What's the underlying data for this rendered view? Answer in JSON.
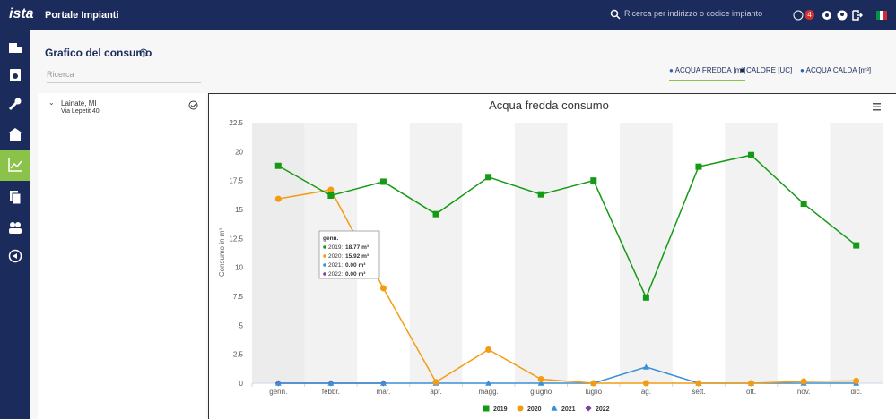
{
  "header": {
    "logo": "ista",
    "app_title": "Portale Impianti",
    "search_placeholder": "Ricerca per indirizzo o codice impianto",
    "notification_count": "4"
  },
  "page": {
    "title": "Grafico del consumo",
    "search_placeholder": "Ricerca",
    "tabs": [
      "ACQUA FREDDA [m³]",
      "CALORE [UC]",
      "ACQUA CALDA [m³]"
    ],
    "site": {
      "city": "Lainate, MI",
      "address": "Via Lepetit 40"
    }
  },
  "tooltip": {
    "title": "genn.",
    "rows": [
      {
        "series": "2019:",
        "value": "18.77 m³"
      },
      {
        "series": "2020:",
        "value": "15.92 m³"
      },
      {
        "series": "2021:",
        "value": "0.00 m³"
      },
      {
        "series": "2022:",
        "value": "0.00 m³"
      }
    ]
  },
  "chart_data": {
    "type": "line",
    "title": "Acqua fredda consumo",
    "y_label": "Consumo in m³",
    "categories": [
      "genn.",
      "febbr.",
      "mar.",
      "apr.",
      "magg.",
      "giugno",
      "luglio",
      "ag.",
      "sett.",
      "ott.",
      "nov.",
      "dic."
    ],
    "ylim": [
      0,
      22.5
    ],
    "yticks": [
      0,
      2.5,
      5,
      7.5,
      10,
      12.5,
      15,
      17.5,
      20,
      22.5
    ],
    "series": [
      {
        "name": "2019",
        "color": "#159a15",
        "marker": "square",
        "values": [
          18.77,
          16.2,
          17.4,
          14.6,
          17.8,
          16.3,
          17.5,
          7.4,
          18.7,
          19.7,
          15.5,
          11.9
        ]
      },
      {
        "name": "2020",
        "color": "#f39c12",
        "marker": "circle",
        "values": [
          15.92,
          16.7,
          8.2,
          0.1,
          2.9,
          0.35,
          0,
          0,
          0,
          0,
          0.15,
          0.2
        ]
      },
      {
        "name": "2021",
        "color": "#3a8fd6",
        "marker": "triangle",
        "values": [
          0,
          0,
          0,
          0,
          0,
          0,
          0,
          1.4,
          0,
          0,
          0,
          0
        ]
      },
      {
        "name": "2022",
        "color": "#7b3fa0",
        "marker": "diamond",
        "values": [
          0,
          0,
          0,
          null,
          null,
          null,
          null,
          null,
          null,
          null,
          null,
          null
        ]
      }
    ]
  }
}
